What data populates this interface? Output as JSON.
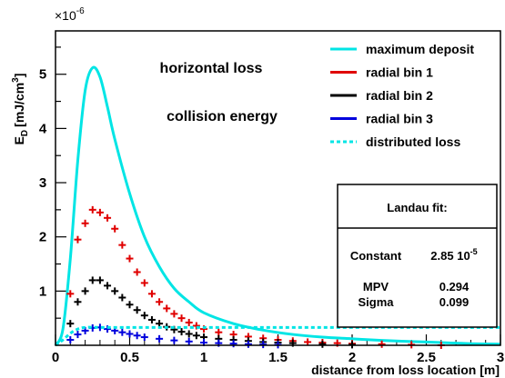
{
  "chart_data": {
    "type": "line",
    "xlabel": "distance from loss location [m]",
    "ylabel": "E_D [mJ/cm^3]",
    "ylabel_main": "E",
    "ylabel_sub": "D",
    "ylabel_unit": "[mJ/cm",
    "ylabel_unit_sup": "3",
    "ylabel_unit_close": "]",
    "y_multiplier_base": "×10",
    "y_multiplier_exp": "-6",
    "xlim": [
      0,
      3
    ],
    "ylim": [
      0,
      5.8
    ],
    "x_ticks": [
      0,
      0.5,
      1,
      1.5,
      2,
      2.5,
      3
    ],
    "x_tick_labels": [
      "0",
      "0.5",
      "1",
      "1.5",
      "2",
      "2.5",
      "3"
    ],
    "y_ticks": [
      1,
      2,
      3,
      4,
      5
    ],
    "y_tick_labels": [
      "1",
      "2",
      "3",
      "4",
      "5"
    ],
    "annotations": [
      "horizontal loss",
      "collision energy"
    ],
    "legend_position": "top-right",
    "series": [
      {
        "name": "maximum deposit",
        "color": "#00e5e5",
        "style": "solid",
        "x": [
          0,
          0.05,
          0.1,
          0.15,
          0.2,
          0.25,
          0.3,
          0.35,
          0.4,
          0.5,
          0.6,
          0.7,
          0.8,
          0.9,
          1.0,
          1.2,
          1.4,
          1.6,
          1.8,
          2.0,
          2.2,
          2.4,
          2.6,
          2.8,
          3.0
        ],
        "y": [
          0,
          0.3,
          1.6,
          3.4,
          4.7,
          5.12,
          4.95,
          4.4,
          3.8,
          2.8,
          2.0,
          1.45,
          1.05,
          0.8,
          0.6,
          0.4,
          0.28,
          0.2,
          0.15,
          0.12,
          0.09,
          0.07,
          0.05,
          0.03,
          0.02
        ]
      },
      {
        "name": "radial bin 1",
        "color": "#e00000",
        "style": "markers",
        "x": [
          0.1,
          0.15,
          0.2,
          0.25,
          0.3,
          0.35,
          0.4,
          0.45,
          0.5,
          0.55,
          0.6,
          0.65,
          0.7,
          0.75,
          0.8,
          0.85,
          0.9,
          0.95,
          1.0,
          1.1,
          1.2,
          1.3,
          1.4,
          1.5,
          1.6,
          1.7,
          1.8,
          1.9,
          2.0,
          2.2,
          2.4,
          2.6
        ],
        "y": [
          0.95,
          1.95,
          2.25,
          2.5,
          2.45,
          2.35,
          2.15,
          1.85,
          1.6,
          1.35,
          1.15,
          0.95,
          0.8,
          0.68,
          0.58,
          0.5,
          0.42,
          0.36,
          0.3,
          0.24,
          0.2,
          0.16,
          0.13,
          0.1,
          0.08,
          0.06,
          0.05,
          0.04,
          0.03,
          0.02,
          0.01,
          0.0
        ]
      },
      {
        "name": "radial bin 2",
        "color": "#000000",
        "style": "markers",
        "x": [
          0.1,
          0.15,
          0.2,
          0.25,
          0.3,
          0.35,
          0.4,
          0.45,
          0.5,
          0.55,
          0.6,
          0.65,
          0.7,
          0.75,
          0.8,
          0.85,
          0.9,
          0.95,
          1.0,
          1.1,
          1.2,
          1.3,
          1.4,
          1.5,
          1.6,
          1.8,
          2.0
        ],
        "y": [
          0.4,
          0.8,
          1.0,
          1.2,
          1.2,
          1.1,
          1.0,
          0.88,
          0.75,
          0.65,
          0.55,
          0.47,
          0.4,
          0.34,
          0.29,
          0.25,
          0.21,
          0.18,
          0.15,
          0.12,
          0.1,
          0.08,
          0.06,
          0.05,
          0.04,
          0.02,
          0.01
        ]
      },
      {
        "name": "radial bin 3",
        "color": "#0000dd",
        "style": "markers",
        "x": [
          0.1,
          0.15,
          0.2,
          0.25,
          0.3,
          0.35,
          0.4,
          0.45,
          0.5,
          0.55,
          0.6,
          0.7,
          0.8,
          0.9,
          1.0,
          1.1,
          1.2,
          1.3,
          1.4,
          1.5
        ],
        "y": [
          0.1,
          0.2,
          0.27,
          0.32,
          0.33,
          0.3,
          0.27,
          0.24,
          0.21,
          0.18,
          0.15,
          0.12,
          0.09,
          0.07,
          0.05,
          0.04,
          0.03,
          0.02,
          0.015,
          0.01
        ]
      },
      {
        "name": "distributed loss",
        "color": "#00e5e5",
        "style": "dashed",
        "x": [
          0,
          0.05,
          0.1,
          0.15,
          0.2,
          0.3,
          0.5,
          1.0,
          1.5,
          2.0,
          2.5,
          3.0
        ],
        "y": [
          0.0,
          0.1,
          0.22,
          0.3,
          0.33,
          0.33,
          0.33,
          0.33,
          0.33,
          0.33,
          0.33,
          0.33
        ]
      }
    ],
    "landau_fit": {
      "title": "Landau fit:",
      "rows": [
        {
          "label": "Constant",
          "value": "2.85 10",
          "value_exp": "-5"
        },
        {
          "label": "MPV",
          "value": "0.294",
          "value_exp": ""
        },
        {
          "label": "Sigma",
          "value": "0.099",
          "value_exp": ""
        }
      ]
    }
  }
}
